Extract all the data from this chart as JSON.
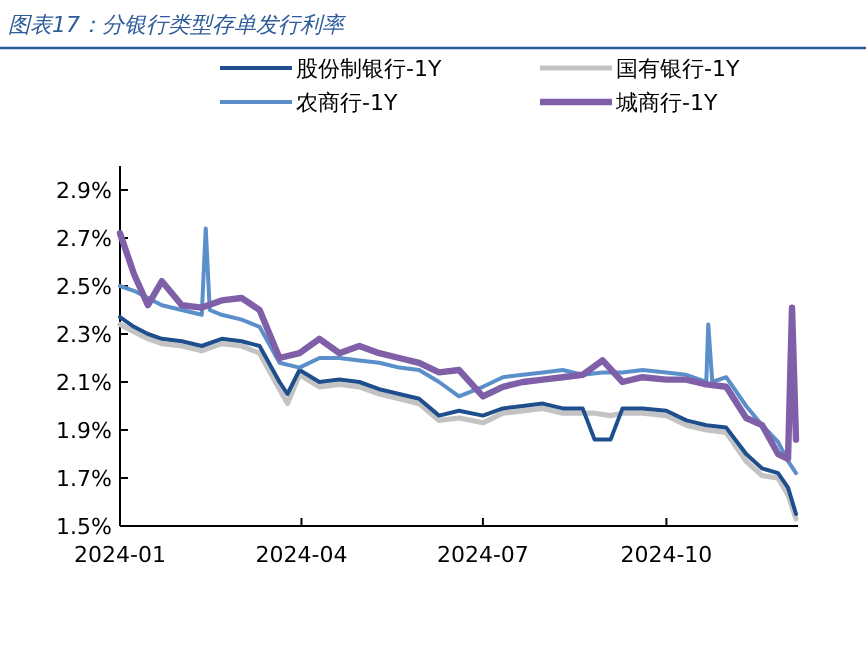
{
  "chart_data": {
    "type": "line",
    "title": "图表17：分银行类型存单发行利率",
    "legend": "top",
    "grid": false,
    "line_style": "solid",
    "xlim": [
      "2024-01-01",
      "2024-12-06"
    ],
    "xticks": [
      {
        "value": "2024-01-01",
        "label": "2024-01"
      },
      {
        "value": "2024-04-01",
        "label": "2024-04"
      },
      {
        "value": "2024-07-01",
        "label": "2024-07"
      },
      {
        "value": "2024-10-01",
        "label": "2024-10"
      }
    ],
    "ylim": [
      1.5,
      3.0
    ],
    "yticks": [
      {
        "value": 1.5,
        "label": "1.5%"
      },
      {
        "value": 1.7,
        "label": "1.7%"
      },
      {
        "value": 1.9,
        "label": "1.9%"
      },
      {
        "value": 2.1,
        "label": "2.1%"
      },
      {
        "value": 2.3,
        "label": "2.3%"
      },
      {
        "value": 2.5,
        "label": "2.5%"
      },
      {
        "value": 2.7,
        "label": "2.7%"
      },
      {
        "value": 2.9,
        "label": "2.9%"
      }
    ],
    "series": [
      {
        "name": "国有银行-1Y",
        "color": "#c3c3c3",
        "x": [
          "2024-01-01",
          "2024-01-08",
          "2024-01-15",
          "2024-01-22",
          "2024-02-01",
          "2024-02-11",
          "2024-02-21",
          "2024-03-02",
          "2024-03-11",
          "2024-03-21",
          "2024-03-25",
          "2024-03-31",
          "2024-04-10",
          "2024-04-20",
          "2024-04-30",
          "2024-05-10",
          "2024-05-20",
          "2024-05-30",
          "2024-06-09",
          "2024-06-19",
          "2024-07-01",
          "2024-07-11",
          "2024-07-21",
          "2024-07-31",
          "2024-08-10",
          "2024-08-20",
          "2024-08-26",
          "2024-09-03",
          "2024-09-09",
          "2024-09-19",
          "2024-10-01",
          "2024-10-11",
          "2024-10-21",
          "2024-10-31",
          "2024-11-10",
          "2024-11-18",
          "2024-11-26",
          "2024-12-01",
          "2024-12-05"
        ],
        "values": [
          2.34,
          2.31,
          2.28,
          2.26,
          2.25,
          2.23,
          2.26,
          2.25,
          2.22,
          2.07,
          2.01,
          2.13,
          2.08,
          2.09,
          2.08,
          2.05,
          2.03,
          2.01,
          1.94,
          1.95,
          1.93,
          1.97,
          1.98,
          1.99,
          1.97,
          1.97,
          1.97,
          1.96,
          1.97,
          1.97,
          1.96,
          1.92,
          1.9,
          1.89,
          1.77,
          1.71,
          1.7,
          1.63,
          1.53
        ]
      },
      {
        "name": "股份制银行-1Y",
        "color": "#1f4e8c",
        "x": [
          "2024-01-01",
          "2024-01-08",
          "2024-01-15",
          "2024-01-22",
          "2024-02-01",
          "2024-02-11",
          "2024-02-21",
          "2024-03-02",
          "2024-03-11",
          "2024-03-21",
          "2024-03-25",
          "2024-03-31",
          "2024-04-10",
          "2024-04-20",
          "2024-04-30",
          "2024-05-10",
          "2024-05-20",
          "2024-05-30",
          "2024-06-09",
          "2024-06-19",
          "2024-07-01",
          "2024-07-11",
          "2024-07-21",
          "2024-07-31",
          "2024-08-10",
          "2024-08-20",
          "2024-08-26",
          "2024-09-03",
          "2024-09-09",
          "2024-09-19",
          "2024-10-01",
          "2024-10-11",
          "2024-10-21",
          "2024-10-31",
          "2024-11-10",
          "2024-11-18",
          "2024-11-26",
          "2024-12-01",
          "2024-12-05"
        ],
        "values": [
          2.37,
          2.33,
          2.3,
          2.28,
          2.27,
          2.25,
          2.28,
          2.27,
          2.25,
          2.1,
          2.05,
          2.15,
          2.1,
          2.11,
          2.1,
          2.07,
          2.05,
          2.03,
          1.96,
          1.98,
          1.96,
          1.99,
          2.0,
          2.01,
          1.99,
          1.99,
          1.86,
          1.86,
          1.99,
          1.99,
          1.98,
          1.94,
          1.92,
          1.91,
          1.8,
          1.74,
          1.72,
          1.66,
          1.55
        ]
      },
      {
        "name": "农商行-1Y",
        "color": "#5b8fc9",
        "x": [
          "2024-01-01",
          "2024-01-08",
          "2024-01-15",
          "2024-01-22",
          "2024-02-01",
          "2024-02-11",
          "2024-02-13",
          "2024-02-15",
          "2024-02-21",
          "2024-03-02",
          "2024-03-11",
          "2024-03-21",
          "2024-03-31",
          "2024-04-10",
          "2024-04-20",
          "2024-04-30",
          "2024-05-10",
          "2024-05-20",
          "2024-05-30",
          "2024-06-09",
          "2024-06-19",
          "2024-07-01",
          "2024-07-11",
          "2024-07-21",
          "2024-07-31",
          "2024-08-10",
          "2024-08-20",
          "2024-08-30",
          "2024-09-09",
          "2024-09-19",
          "2024-10-01",
          "2024-10-11",
          "2024-10-21",
          "2024-10-22",
          "2024-10-24",
          "2024-10-31",
          "2024-11-10",
          "2024-11-18",
          "2024-11-26",
          "2024-12-01",
          "2024-12-05"
        ],
        "values": [
          2.5,
          2.48,
          2.45,
          2.42,
          2.4,
          2.38,
          2.74,
          2.4,
          2.38,
          2.36,
          2.33,
          2.18,
          2.16,
          2.2,
          2.2,
          2.19,
          2.18,
          2.16,
          2.15,
          2.1,
          2.04,
          2.08,
          2.12,
          2.13,
          2.14,
          2.15,
          2.13,
          2.14,
          2.14,
          2.15,
          2.14,
          2.13,
          2.1,
          2.34,
          2.1,
          2.12,
          2.0,
          1.92,
          1.85,
          1.77,
          1.72
        ]
      },
      {
        "name": "城商行-1Y",
        "color": "#7e5fa8",
        "x": [
          "2024-01-01",
          "2024-01-08",
          "2024-01-15",
          "2024-01-22",
          "2024-02-01",
          "2024-02-11",
          "2024-02-21",
          "2024-03-02",
          "2024-03-11",
          "2024-03-21",
          "2024-03-31",
          "2024-04-10",
          "2024-04-20",
          "2024-04-30",
          "2024-05-10",
          "2024-05-20",
          "2024-05-30",
          "2024-06-09",
          "2024-06-19",
          "2024-07-01",
          "2024-07-11",
          "2024-07-21",
          "2024-07-31",
          "2024-08-10",
          "2024-08-20",
          "2024-08-30",
          "2024-09-09",
          "2024-09-19",
          "2024-10-01",
          "2024-10-11",
          "2024-10-21",
          "2024-10-31",
          "2024-11-10",
          "2024-11-18",
          "2024-11-26",
          "2024-12-01",
          "2024-12-03",
          "2024-12-05"
        ],
        "values": [
          2.72,
          2.55,
          2.42,
          2.52,
          2.42,
          2.41,
          2.44,
          2.45,
          2.4,
          2.2,
          2.22,
          2.28,
          2.22,
          2.25,
          2.22,
          2.2,
          2.18,
          2.14,
          2.15,
          2.04,
          2.08,
          2.1,
          2.11,
          2.12,
          2.13,
          2.19,
          2.1,
          2.12,
          2.11,
          2.11,
          2.09,
          2.08,
          1.95,
          1.92,
          1.8,
          1.78,
          2.41,
          1.86
        ]
      }
    ]
  }
}
